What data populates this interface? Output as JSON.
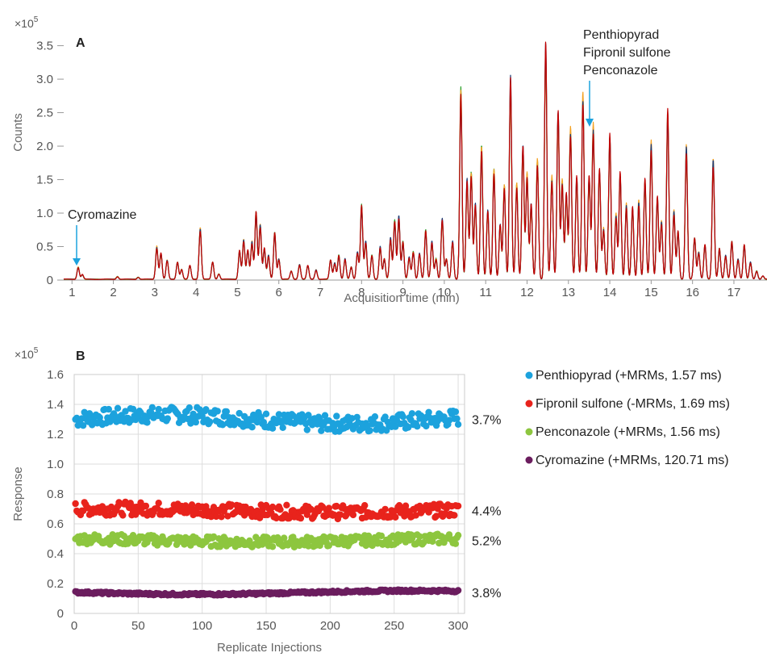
{
  "chart_data": [
    {
      "type": "line",
      "panel_label": "A",
      "scale_label": "×10",
      "scale_exponent": "5",
      "xlabel": "Acquisition time (min)",
      "ylabel": "Counts",
      "xlim": [
        0.8,
        17.8
      ],
      "ylim": [
        0,
        3.7
      ],
      "x_ticks": [
        "1",
        "2",
        "3",
        "4",
        "5",
        "6",
        "7",
        "8",
        "9",
        "10",
        "11",
        "12",
        "13",
        "14",
        "15",
        "16",
        "17"
      ],
      "y_ticks": [
        "0",
        "0.5",
        "1.0",
        "1.5",
        "2.0",
        "2.5",
        "3.0",
        "3.5"
      ],
      "series_colors": [
        "#2ca02c",
        "#f4a020",
        "#1f3b73",
        "#c00000"
      ],
      "peaks": [
        [
          1.15,
          0.18
        ],
        [
          1.25,
          0.07
        ],
        [
          2.1,
          0.04
        ],
        [
          2.6,
          0.03
        ],
        [
          3.05,
          0.48
        ],
        [
          3.15,
          0.38
        ],
        [
          3.3,
          0.28
        ],
        [
          3.55,
          0.25
        ],
        [
          3.65,
          0.15
        ],
        [
          3.85,
          0.2
        ],
        [
          4.1,
          0.75
        ],
        [
          4.4,
          0.25
        ],
        [
          4.55,
          0.08
        ],
        [
          5.05,
          0.42
        ],
        [
          5.15,
          0.58
        ],
        [
          5.25,
          0.42
        ],
        [
          5.35,
          0.55
        ],
        [
          5.45,
          0.98
        ],
        [
          5.55,
          0.8
        ],
        [
          5.65,
          0.45
        ],
        [
          5.75,
          0.35
        ],
        [
          5.9,
          0.68
        ],
        [
          6.0,
          0.3
        ],
        [
          6.3,
          0.12
        ],
        [
          6.5,
          0.22
        ],
        [
          6.7,
          0.2
        ],
        [
          6.9,
          0.14
        ],
        [
          7.25,
          0.28
        ],
        [
          7.35,
          0.24
        ],
        [
          7.45,
          0.35
        ],
        [
          7.6,
          0.3
        ],
        [
          7.75,
          0.18
        ],
        [
          7.9,
          0.4
        ],
        [
          8.0,
          1.08
        ],
        [
          8.1,
          0.55
        ],
        [
          8.25,
          0.35
        ],
        [
          8.45,
          0.48
        ],
        [
          8.55,
          0.3
        ],
        [
          8.7,
          0.6
        ],
        [
          8.8,
          0.85
        ],
        [
          8.9,
          0.92
        ],
        [
          9.0,
          0.55
        ],
        [
          9.15,
          0.32
        ],
        [
          9.25,
          0.4
        ],
        [
          9.4,
          0.38
        ],
        [
          9.55,
          0.72
        ],
        [
          9.7,
          0.55
        ],
        [
          9.8,
          0.3
        ],
        [
          9.95,
          0.88
        ],
        [
          10.05,
          0.3
        ],
        [
          10.2,
          0.55
        ],
        [
          10.4,
          2.78
        ],
        [
          10.55,
          1.45
        ],
        [
          10.65,
          1.55
        ],
        [
          10.75,
          1.1
        ],
        [
          10.9,
          1.95
        ],
        [
          11.05,
          1.0
        ],
        [
          11.2,
          1.6
        ],
        [
          11.35,
          0.8
        ],
        [
          11.45,
          1.38
        ],
        [
          11.6,
          2.95
        ],
        [
          11.75,
          1.4
        ],
        [
          11.9,
          1.95
        ],
        [
          12.0,
          1.55
        ],
        [
          12.1,
          1.1
        ],
        [
          12.25,
          1.75
        ],
        [
          12.45,
          3.45
        ],
        [
          12.6,
          1.5
        ],
        [
          12.75,
          2.45
        ],
        [
          12.85,
          1.45
        ],
        [
          12.95,
          1.25
        ],
        [
          13.05,
          2.2
        ],
        [
          13.2,
          1.5
        ],
        [
          13.35,
          2.7
        ],
        [
          13.5,
          1.5
        ],
        [
          13.6,
          2.25
        ],
        [
          13.75,
          1.6
        ],
        [
          13.85,
          0.75
        ],
        [
          14.0,
          2.1
        ],
        [
          14.15,
          0.95
        ],
        [
          14.25,
          1.55
        ],
        [
          14.4,
          1.1
        ],
        [
          14.55,
          1.05
        ],
        [
          14.7,
          1.15
        ],
        [
          14.85,
          1.45
        ],
        [
          15.0,
          2.0
        ],
        [
          15.15,
          1.2
        ],
        [
          15.25,
          0.85
        ],
        [
          15.4,
          2.45
        ],
        [
          15.55,
          1.0
        ],
        [
          15.65,
          0.7
        ],
        [
          15.85,
          1.95
        ],
        [
          16.05,
          0.6
        ],
        [
          16.15,
          0.4
        ],
        [
          16.3,
          0.5
        ],
        [
          16.5,
          1.75
        ],
        [
          16.65,
          0.45
        ],
        [
          16.8,
          0.35
        ],
        [
          16.95,
          0.55
        ],
        [
          17.1,
          0.3
        ],
        [
          17.25,
          0.5
        ],
        [
          17.4,
          0.25
        ],
        [
          17.55,
          0.12
        ],
        [
          17.7,
          0.05
        ]
      ]
    },
    {
      "type": "scatter",
      "panel_label": "B",
      "scale_label": "×10",
      "scale_exponent": "5",
      "xlabel": "Replicate Injections",
      "ylabel": "Response",
      "xlim": [
        0,
        305
      ],
      "ylim": [
        0,
        1.6
      ],
      "x_ticks": [
        "0",
        "50",
        "100",
        "150",
        "200",
        "250",
        "300"
      ],
      "y_ticks": [
        "0",
        "0.2",
        "0.4",
        "0.6",
        "0.8",
        "1.0",
        "1.2",
        "1.4",
        "1.6"
      ],
      "n_points": 300,
      "series": [
        {
          "name": "Penthiopyrad (+MRMs, 1.57 ms)",
          "color": "#1ca2dd",
          "mean": 1.3,
          "rsd": "3.7%"
        },
        {
          "name": "Fipronil sulfone (-MRMs, 1.69 ms)",
          "color": "#e8231c",
          "mean": 0.69,
          "rsd": "4.4%"
        },
        {
          "name": "Penconazole (+MRMs, 1.56 ms)",
          "color": "#8dc63f",
          "mean": 0.49,
          "rsd": "5.2%"
        },
        {
          "name": "Cyromazine (+MRMs, 120.71 ms)",
          "color": "#6b1d5e",
          "mean": 0.14,
          "rsd": "3.8%"
        }
      ]
    }
  ],
  "annotations": {
    "cyromazine": "Cyromazine",
    "late_peaks": [
      "Penthiopyrad",
      "Fipronil sulfone",
      "Penconazole"
    ]
  },
  "accent_arrow_color": "#1ca2dd"
}
